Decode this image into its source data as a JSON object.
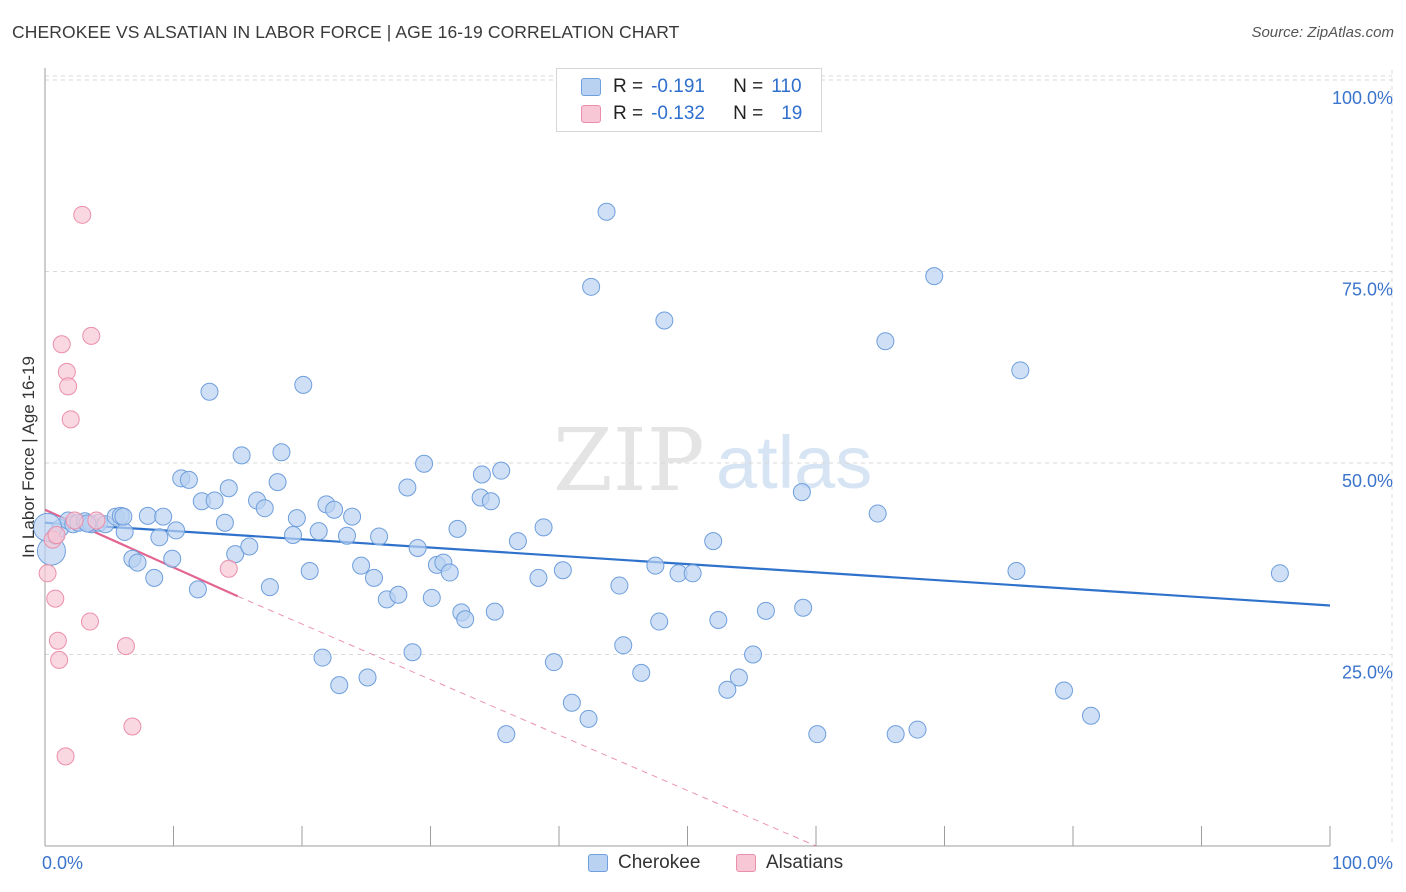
{
  "title": "CHEROKEE VS ALSATIAN IN LABOR FORCE | AGE 16-19 CORRELATION CHART",
  "source": "Source: ZipAtlas.com",
  "watermark": {
    "zip": "ZIP",
    "atlas": "atlas"
  },
  "legend": {
    "rows": [
      {
        "r_label": "R =",
        "r_value": "-0.191",
        "n_label": "N =",
        "n_value": "110"
      },
      {
        "r_label": "R =",
        "r_value": "-0.132",
        "n_label": "N =",
        "n_value": "19"
      }
    ]
  },
  "bottom_legend": [
    "Cherokee",
    "Alsatians"
  ],
  "colors": {
    "blue_fill": "#b9d2f2",
    "blue_stroke": "#6f9fdc",
    "blue_line": "#2f72cc",
    "pink_fill": "#f8c7d6",
    "pink_stroke": "#ea8fab",
    "pink_line": "#e26592",
    "axis_text": "#3b74cc",
    "grid": "#d9d9d9"
  },
  "chart_data": {
    "type": "scatter",
    "title": "CHEROKEE VS ALSATIAN IN LABOR FORCE | AGE 16-19 CORRELATION CHART",
    "xlabel": "",
    "ylabel": "In Labor Force | Age 16-19",
    "xlim": [
      0,
      100
    ],
    "ylim": [
      0,
      100
    ],
    "x_tick_labels": [
      "0.0%",
      "100.0%"
    ],
    "y_tick_labels": [
      "25.0%",
      "50.0%",
      "75.0%",
      "100.0%"
    ],
    "y_ticks": [
      25,
      50,
      75,
      100
    ],
    "grid": true,
    "series": [
      {
        "name": "Cherokee",
        "r": -0.191,
        "n": 110,
        "trend": {
          "x": [
            0,
            100
          ],
          "y": [
            42.2,
            31.4
          ],
          "style": "solid"
        },
        "points": [
          [
            0.5,
            38.5
          ],
          [
            0.8,
            40.5
          ],
          [
            1.2,
            41.5
          ],
          [
            1.8,
            42.5
          ],
          [
            2.2,
            42.0
          ],
          [
            2.6,
            42.2
          ],
          [
            3.1,
            42.4
          ],
          [
            3.6,
            42.0
          ],
          [
            4.2,
            42.2
          ],
          [
            4.7,
            42.0
          ],
          [
            5.5,
            43.0
          ],
          [
            5.9,
            43.1
          ],
          [
            6.2,
            41.0
          ],
          [
            6.8,
            37.5
          ],
          [
            7.2,
            37.0
          ],
          [
            8.0,
            43.1
          ],
          [
            8.5,
            35.0
          ],
          [
            8.9,
            40.3
          ],
          [
            9.2,
            43.0
          ],
          [
            9.9,
            37.5
          ],
          [
            10.2,
            41.2
          ],
          [
            10.6,
            48.0
          ],
          [
            11.2,
            47.8
          ],
          [
            11.9,
            33.5
          ],
          [
            12.2,
            45.0
          ],
          [
            12.8,
            59.3
          ],
          [
            13.2,
            45.1
          ],
          [
            14.0,
            42.2
          ],
          [
            14.3,
            46.7
          ],
          [
            14.8,
            38.1
          ],
          [
            15.3,
            51.0
          ],
          [
            15.9,
            39.1
          ],
          [
            16.5,
            45.1
          ],
          [
            17.1,
            44.1
          ],
          [
            17.5,
            33.8
          ],
          [
            18.1,
            47.5
          ],
          [
            18.4,
            51.4
          ],
          [
            19.3,
            40.6
          ],
          [
            19.6,
            42.8
          ],
          [
            20.1,
            60.2
          ],
          [
            20.6,
            35.9
          ],
          [
            21.3,
            41.1
          ],
          [
            21.6,
            24.6
          ],
          [
            21.9,
            44.6
          ],
          [
            22.5,
            43.9
          ],
          [
            22.9,
            21.0
          ],
          [
            23.5,
            40.5
          ],
          [
            23.9,
            43.0
          ],
          [
            24.6,
            36.6
          ],
          [
            25.1,
            22.0
          ],
          [
            25.6,
            35.0
          ],
          [
            26.0,
            40.4
          ],
          [
            26.6,
            32.2
          ],
          [
            27.5,
            32.8
          ],
          [
            28.2,
            46.8
          ],
          [
            28.6,
            25.3
          ],
          [
            29.0,
            38.9
          ],
          [
            29.5,
            49.9
          ],
          [
            30.1,
            32.4
          ],
          [
            30.5,
            36.7
          ],
          [
            31.0,
            37.0
          ],
          [
            31.5,
            35.7
          ],
          [
            32.1,
            41.4
          ],
          [
            32.4,
            30.5
          ],
          [
            32.7,
            29.6
          ],
          [
            33.9,
            45.5
          ],
          [
            34.0,
            48.5
          ],
          [
            34.7,
            45.0
          ],
          [
            35.0,
            30.6
          ],
          [
            35.5,
            49.0
          ],
          [
            35.9,
            14.6
          ],
          [
            36.8,
            39.8
          ],
          [
            38.4,
            35.0
          ],
          [
            38.8,
            41.6
          ],
          [
            39.6,
            24.0
          ],
          [
            40.3,
            36.0
          ],
          [
            41.0,
            18.7
          ],
          [
            42.3,
            16.6
          ],
          [
            42.5,
            73.0
          ],
          [
            43.7,
            82.8
          ],
          [
            44.7,
            34.0
          ],
          [
            45.0,
            26.2
          ],
          [
            46.4,
            22.6
          ],
          [
            47.5,
            36.6
          ],
          [
            47.8,
            29.3
          ],
          [
            48.2,
            68.6
          ],
          [
            49.3,
            35.6
          ],
          [
            50.4,
            35.6
          ],
          [
            52.0,
            39.8
          ],
          [
            52.4,
            29.5
          ],
          [
            53.1,
            20.4
          ],
          [
            54.0,
            22.0
          ],
          [
            55.1,
            25.0
          ],
          [
            56.1,
            30.7
          ],
          [
            58.9,
            46.2
          ],
          [
            59.0,
            31.1
          ],
          [
            60.1,
            14.6
          ],
          [
            64.8,
            43.4
          ],
          [
            65.4,
            65.9
          ],
          [
            66.2,
            14.6
          ],
          [
            67.9,
            15.2
          ],
          [
            69.2,
            74.4
          ],
          [
            75.6,
            35.9
          ],
          [
            75.9,
            62.1
          ],
          [
            79.3,
            20.3
          ],
          [
            81.4,
            17.0
          ],
          [
            96.1,
            35.6
          ],
          [
            6.1,
            43.0
          ],
          [
            3.3,
            42.1
          ],
          [
            0.2,
            41.6
          ]
        ]
      },
      {
        "name": "Alsatians",
        "r": -0.132,
        "n": 19,
        "trend": {
          "x": [
            0,
            15,
            60
          ],
          "y": [
            43.9,
            32.6,
            0
          ],
          "style": "solid-then-dashed"
        },
        "points": [
          [
            0.2,
            35.6
          ],
          [
            0.6,
            40.0
          ],
          [
            0.8,
            32.3
          ],
          [
            1.0,
            26.8
          ],
          [
            1.1,
            24.3
          ],
          [
            1.3,
            65.5
          ],
          [
            1.6,
            11.7
          ],
          [
            1.7,
            61.9
          ],
          [
            1.8,
            60.0
          ],
          [
            2.0,
            55.7
          ],
          [
            2.3,
            42.5
          ],
          [
            2.9,
            82.4
          ],
          [
            3.5,
            29.3
          ],
          [
            3.6,
            66.6
          ],
          [
            4.0,
            42.5
          ],
          [
            6.3,
            26.1
          ],
          [
            6.8,
            15.6
          ],
          [
            14.3,
            36.2
          ],
          [
            0.9,
            40.6
          ]
        ]
      }
    ]
  }
}
